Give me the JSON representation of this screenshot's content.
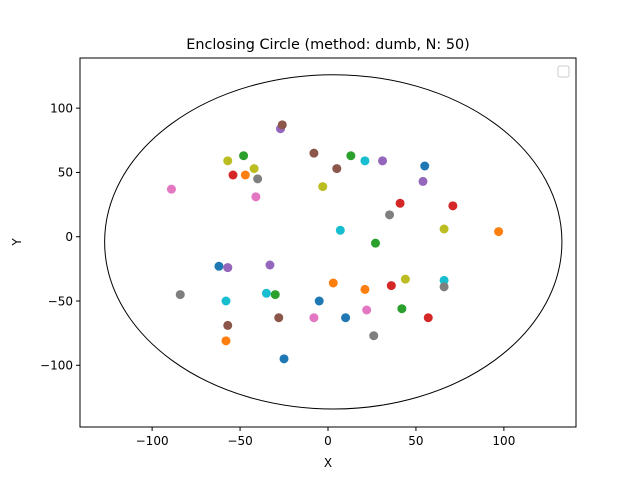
{
  "chart_data": {
    "type": "scatter",
    "title": "Enclosing Circle (method: dumb, N: 50)",
    "xlabel": "X",
    "ylabel": "Y",
    "xlim": [
      -141,
      141
    ],
    "ylim": [
      -148,
      139
    ],
    "xticks": [
      -100,
      -50,
      0,
      50,
      100
    ],
    "yticks": [
      -100,
      -50,
      0,
      50,
      100
    ],
    "xtick_labels": [
      "−100",
      "−50",
      "0",
      "50",
      "100"
    ],
    "ytick_labels": [
      "−100",
      "−50",
      "0",
      "50",
      "100"
    ],
    "grid": false,
    "legend": "top-right (empty)",
    "circle": {
      "cx": 3,
      "cy": -4,
      "r": 130
    },
    "circle_color": "#000000",
    "palette": [
      "#1f77b4",
      "#ff7f0e",
      "#2ca02c",
      "#d62728",
      "#9467bd",
      "#8c564b",
      "#e377c2",
      "#7f7f7f",
      "#bcbd22",
      "#17becf"
    ],
    "points": [
      {
        "x": -62,
        "y": -23,
        "c": 0
      },
      {
        "x": -47,
        "y": 48,
        "c": 1
      },
      {
        "x": -48,
        "y": 63,
        "c": 2
      },
      {
        "x": -54,
        "y": 48,
        "c": 3
      },
      {
        "x": -27,
        "y": 84,
        "c": 4
      },
      {
        "x": -26,
        "y": 87,
        "c": 5
      },
      {
        "x": -89,
        "y": 37,
        "c": 6
      },
      {
        "x": -40,
        "y": 45,
        "c": 7
      },
      {
        "x": -42,
        "y": 53,
        "c": 8
      },
      {
        "x": 7,
        "y": 5,
        "c": 9
      },
      {
        "x": 55,
        "y": 55,
        "c": 0
      },
      {
        "x": 97,
        "y": 4,
        "c": 1
      },
      {
        "x": 13,
        "y": 63,
        "c": 2
      },
      {
        "x": 71,
        "y": 24,
        "c": 3
      },
      {
        "x": 31,
        "y": 59,
        "c": 4
      },
      {
        "x": -8,
        "y": 65,
        "c": 5
      },
      {
        "x": -41,
        "y": 31,
        "c": 6
      },
      {
        "x": 35,
        "y": 17,
        "c": 7
      },
      {
        "x": -57,
        "y": 59,
        "c": 8
      },
      {
        "x": 21,
        "y": 59,
        "c": 9
      },
      {
        "x": -5,
        "y": -50,
        "c": 0
      },
      {
        "x": 3,
        "y": -36,
        "c": 1
      },
      {
        "x": 27,
        "y": -5,
        "c": 2
      },
      {
        "x": 41,
        "y": 26,
        "c": 3
      },
      {
        "x": 54,
        "y": 43,
        "c": 4
      },
      {
        "x": 5,
        "y": 53,
        "c": 5
      },
      {
        "x": -57,
        "y": -24,
        "c": 6
      },
      {
        "x": -84,
        "y": -45,
        "c": 7
      },
      {
        "x": -3,
        "y": 39,
        "c": 8
      },
      {
        "x": 66,
        "y": -34,
        "c": 9
      },
      {
        "x": 10,
        "y": -63,
        "c": 0
      },
      {
        "x": 21,
        "y": -41,
        "c": 1
      },
      {
        "x": -30,
        "y": -45,
        "c": 2
      },
      {
        "x": 36,
        "y": -38,
        "c": 3
      },
      {
        "x": -33,
        "y": -22,
        "c": 4
      },
      {
        "x": -28,
        "y": -63,
        "c": 5
      },
      {
        "x": -8,
        "y": -63,
        "c": 6
      },
      {
        "x": 26,
        "y": -77,
        "c": 7
      },
      {
        "x": 66,
        "y": 6,
        "c": 8
      },
      {
        "x": -58,
        "y": -50,
        "c": 9
      },
      {
        "x": -25,
        "y": -95,
        "c": 0
      },
      {
        "x": -58,
        "y": -81,
        "c": 1
      },
      {
        "x": 42,
        "y": -56,
        "c": 2
      },
      {
        "x": 57,
        "y": -63,
        "c": 3
      },
      {
        "x": -57,
        "y": -24,
        "c": 4
      },
      {
        "x": -57,
        "y": -69,
        "c": 5
      },
      {
        "x": 22,
        "y": -57,
        "c": 6
      },
      {
        "x": 66,
        "y": -39,
        "c": 7
      },
      {
        "x": 44,
        "y": -33,
        "c": 8
      },
      {
        "x": -35,
        "y": -44,
        "c": 9
      }
    ]
  }
}
